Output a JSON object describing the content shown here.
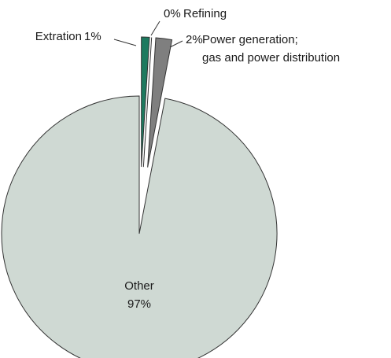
{
  "chart_data": {
    "type": "pie",
    "categories": [
      "Extration",
      "Refining",
      "Power generation; gas and power distribution",
      "Other"
    ],
    "values": [
      1,
      0,
      2,
      97
    ],
    "value_labels": [
      "1%",
      "0%",
      "2%",
      "97%"
    ],
    "colors": [
      "#1d7a5f",
      "#1d7a5f",
      "#7f7f7f",
      "#cfd9d3"
    ]
  }
}
